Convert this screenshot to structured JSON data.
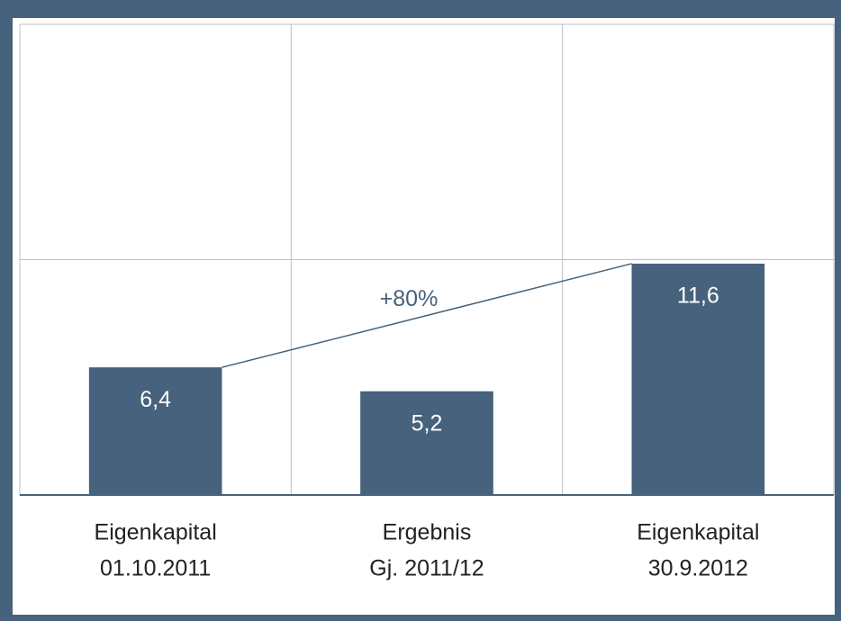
{
  "chart_data": {
    "type": "bar",
    "categories": [
      [
        "Eigenkapital",
        "01.10.2011"
      ],
      [
        "Ergebnis",
        "Gj. 2011/12"
      ],
      [
        "Eigenkapital",
        "30.9.2012"
      ]
    ],
    "values": [
      6.4,
      5.2,
      11.6
    ],
    "value_labels": [
      "6,4",
      "5,2",
      "11,6"
    ],
    "color": "#46627c",
    "ylim": [
      0,
      23.6
    ],
    "yticks": [
      0,
      11.8,
      23.6
    ],
    "grid": true,
    "annotation": "+80%"
  }
}
